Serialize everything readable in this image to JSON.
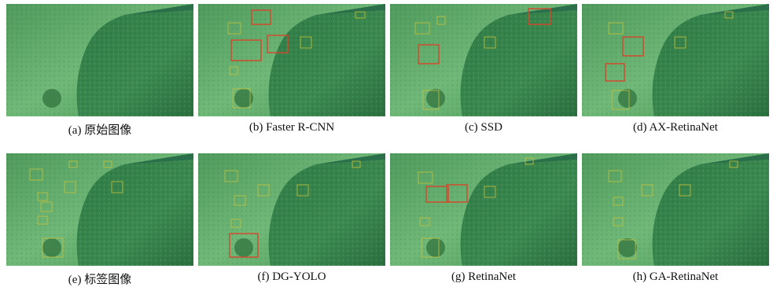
{
  "figures": [
    {
      "caption": "(a) 原始图像"
    },
    {
      "caption": "(b) Faster R-CNN"
    },
    {
      "caption": "(c) SSD"
    },
    {
      "caption": "(d) AX-RetinaNet"
    },
    {
      "caption": "(e) 标签图像"
    },
    {
      "caption": "(f) DG-YOLO"
    },
    {
      "caption": "(g) RetinaNet"
    },
    {
      "caption": "(h) GA-RetinaNet"
    }
  ]
}
